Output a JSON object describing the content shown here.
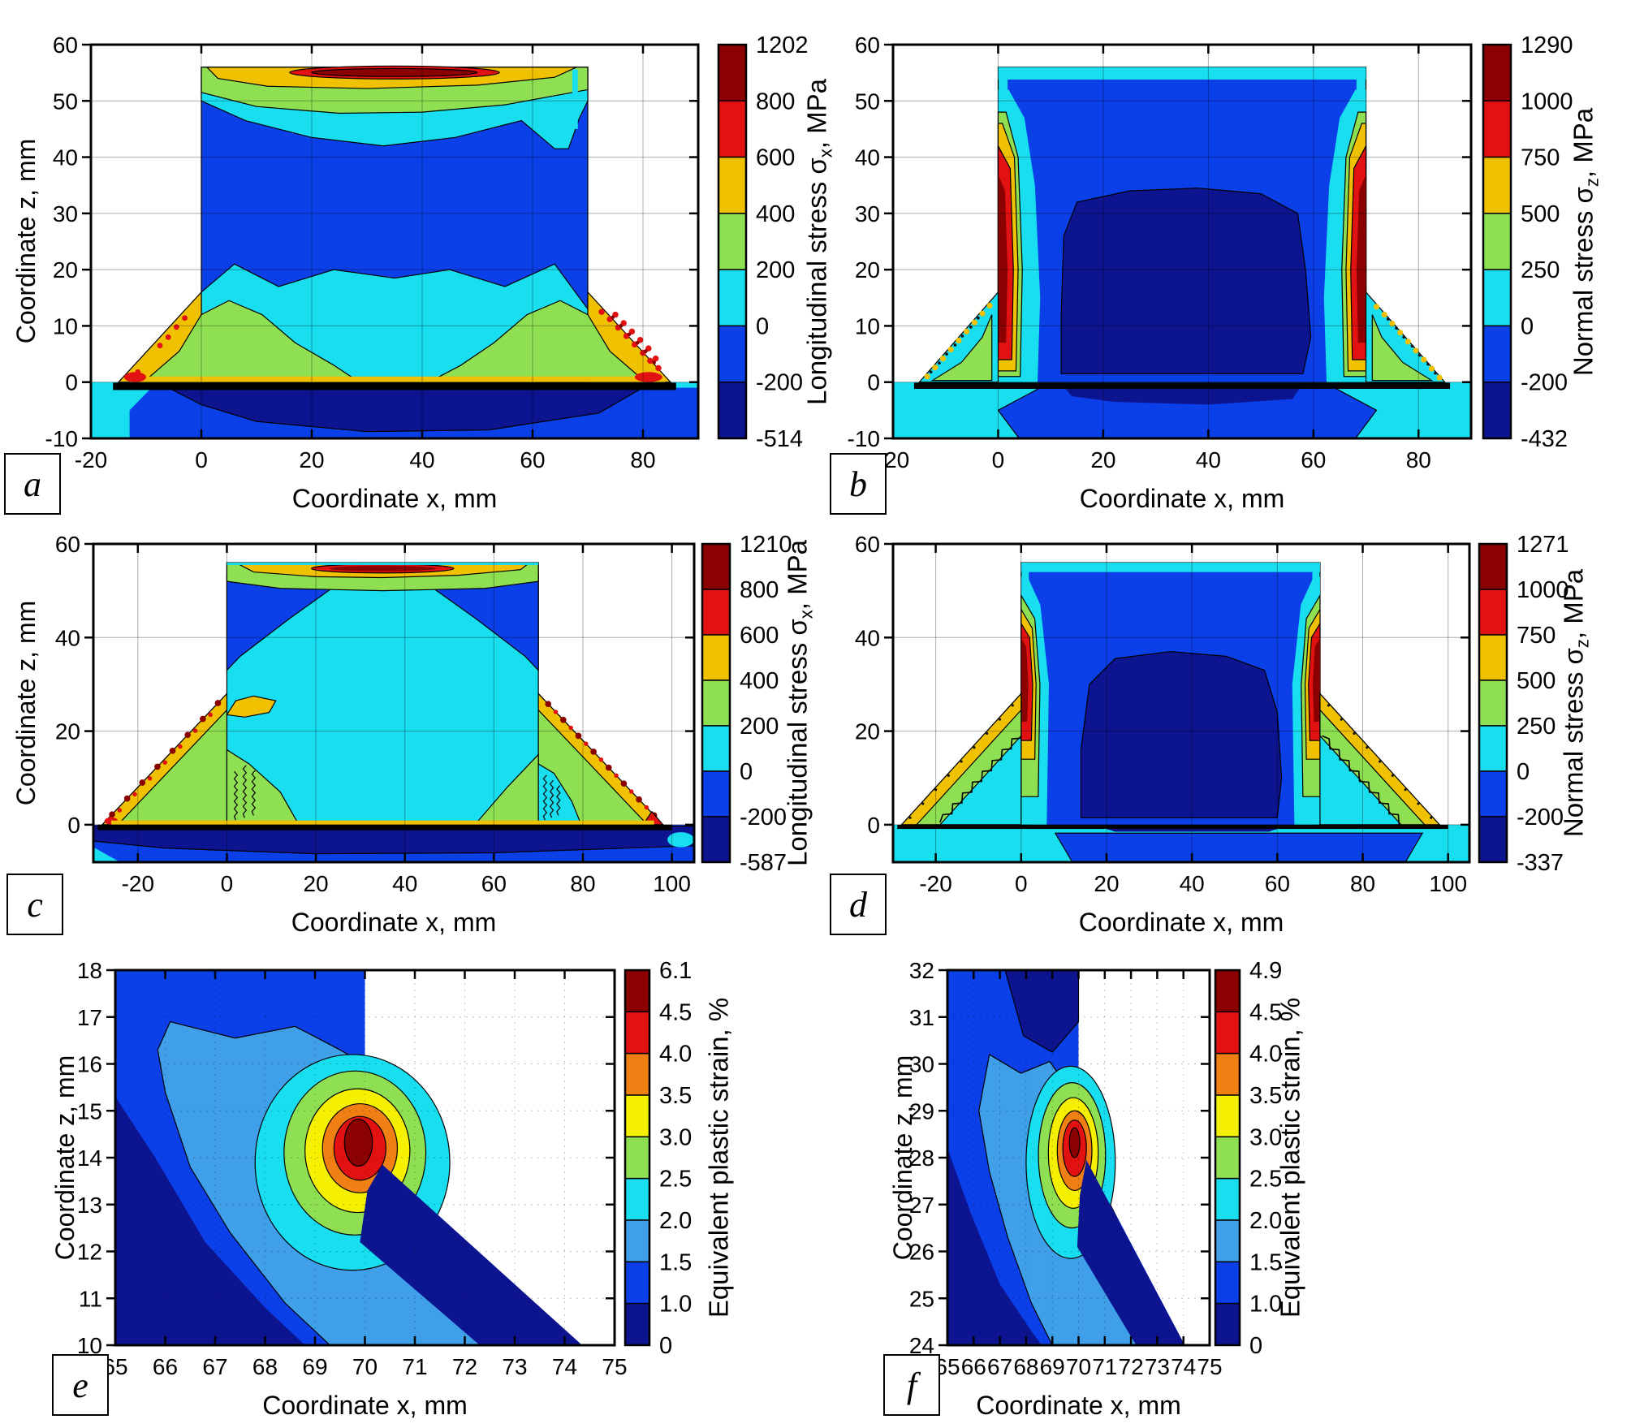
{
  "colors": {
    "maroon": "#8B0000",
    "red": "#E31212",
    "orange": "#F07F14",
    "gold": "#EFC100",
    "yellow": "#F5F000",
    "green": "#8EE052",
    "cyan": "#18DEF0",
    "lightblue": "#3F9FE8",
    "blue": "#0B3FE8",
    "navy": "#0D1490",
    "grid": "rgba(0,0,0,0.32)",
    "axis": "#000000"
  },
  "panels": {
    "a": {
      "letter": "a",
      "xlabel": "Coordinate x, mm",
      "ylabel": "Coordinate z, mm",
      "x_ticks": [
        -20,
        0,
        20,
        40,
        60,
        80
      ],
      "y_ticks": [
        -10,
        0,
        10,
        20,
        30,
        40,
        50,
        60
      ],
      "cbar": {
        "title_main": "Longitudinal stress σ",
        "title_sub": "x",
        "title_unit": ", MPa",
        "labels": [
          "1202",
          "800",
          "600",
          "400",
          "200",
          "0",
          "-200",
          "-514"
        ],
        "colors": [
          "maroon",
          "red",
          "gold",
          "green",
          "cyan",
          "blue",
          "navy"
        ]
      }
    },
    "b": {
      "letter": "b",
      "xlabel": "Coordinate x, mm",
      "x_ticks": [
        -20,
        0,
        20,
        40,
        60,
        80
      ],
      "y_ticks": [
        -10,
        0,
        10,
        20,
        30,
        40,
        50,
        60
      ],
      "cbar": {
        "title_main": "Normal stress σ",
        "title_sub": "z",
        "title_unit": ", MPa",
        "labels": [
          "1290",
          "1000",
          "750",
          "500",
          "250",
          "0",
          "-200",
          "-432"
        ],
        "colors": [
          "maroon",
          "red",
          "gold",
          "green",
          "cyan",
          "blue",
          "navy"
        ]
      }
    },
    "c": {
      "letter": "c",
      "xlabel": "Coordinate x, mm",
      "ylabel": "Coordinate z, mm",
      "x_ticks": [
        -20,
        0,
        20,
        40,
        60,
        80,
        100
      ],
      "y_ticks": [
        0,
        20,
        40,
        60
      ],
      "cbar": {
        "title_main": "Longitudinal stress σ",
        "title_sub": "x",
        "title_unit": ", MPa",
        "labels": [
          "1210",
          "800",
          "600",
          "400",
          "200",
          "0",
          "-200",
          "-587"
        ],
        "colors": [
          "maroon",
          "red",
          "gold",
          "green",
          "cyan",
          "blue",
          "navy"
        ]
      }
    },
    "d": {
      "letter": "d",
      "xlabel": "Coordinate x, mm",
      "x_ticks": [
        -20,
        0,
        20,
        40,
        60,
        80,
        100
      ],
      "y_ticks": [
        0,
        20,
        40,
        60
      ],
      "cbar": {
        "title_main": "Normal stress σ",
        "title_sub": "z",
        "title_unit": ", MPa",
        "labels": [
          "1271",
          "1000",
          "750",
          "500",
          "250",
          "0",
          "-200",
          "-337"
        ],
        "colors": [
          "maroon",
          "red",
          "gold",
          "green",
          "cyan",
          "blue",
          "navy"
        ]
      }
    },
    "e": {
      "letter": "e",
      "xlabel": "Coordinate x, mm",
      "ylabel": "Coordinate z, mm",
      "x_ticks": [
        65,
        66,
        67,
        68,
        69,
        70,
        71,
        72,
        73,
        74,
        75
      ],
      "y_ticks": [
        10,
        11,
        12,
        13,
        14,
        15,
        16,
        17,
        18
      ],
      "cbar": {
        "title_main": "Equivalent plastic strain, %",
        "title_sub": "",
        "title_unit": "",
        "labels": [
          "6.1",
          "4.5",
          "4.0",
          "3.5",
          "3.0",
          "2.5",
          "2.0",
          "1.5",
          "1.0",
          "0"
        ],
        "colors": [
          "maroon",
          "red",
          "orange",
          "yellow",
          "green",
          "cyan",
          "lightblue",
          "blue",
          "navy"
        ]
      }
    },
    "f": {
      "letter": "f",
      "xlabel": "Coordinate x, mm",
      "ylabel": "Coordinate z, mm",
      "x_ticks": [
        65,
        66,
        67,
        68,
        69,
        70,
        71,
        72,
        73,
        74,
        75
      ],
      "y_ticks": [
        24,
        25,
        26,
        27,
        28,
        29,
        30,
        31,
        32
      ],
      "cbar": {
        "title_main": "Equivalent plastic strain, %",
        "title_sub": "",
        "title_unit": "",
        "labels": [
          "4.9",
          "4.5",
          "4.0",
          "3.5",
          "3.0",
          "2.5",
          "2.0",
          "1.5",
          "1.0",
          "0"
        ],
        "colors": [
          "maroon",
          "red",
          "orange",
          "yellow",
          "green",
          "cyan",
          "lightblue",
          "blue",
          "navy"
        ]
      }
    }
  },
  "chart_data": [
    {
      "panel": "a",
      "type": "contour",
      "quantity": "Longitudinal stress σx",
      "units": "MPa",
      "xlabel": "Coordinate x, mm",
      "ylabel": "Coordinate z, mm",
      "x_range": [
        -20,
        90
      ],
      "y_range": [
        -10,
        60
      ],
      "x_ticks": [
        -20,
        0,
        20,
        40,
        60,
        80
      ],
      "y_ticks": [
        -10,
        0,
        10,
        20,
        30,
        40,
        50,
        60
      ],
      "contour_levels": [
        -514,
        -200,
        0,
        200,
        400,
        600,
        800,
        1202
      ],
      "palette_low_to_high": [
        "navy",
        "blue",
        "cyan",
        "green",
        "gold",
        "red",
        "maroon"
      ],
      "min": -514,
      "max": 1202,
      "grid": true,
      "legend_position": "right-colorbar",
      "features": [
        "T-joint cross-section: vertical plate x≈0–70 mm, z≈0–56 mm standing on base plate z<0",
        "peak tension ≈1202 MPa in a narrow horizontal band at top edge z≈55 mm",
        "weld fillet feet (z≈0–16 mm) at 200–600 MPa (green/gold) with local red spots along fusion lines",
        "base plate below weld line compressed, navy lens down to ≈−514 MPa"
      ]
    },
    {
      "panel": "b",
      "type": "contour",
      "quantity": "Normal stress σz",
      "units": "MPa",
      "xlabel": "Coordinate x, mm",
      "ylabel": "Coordinate z, mm",
      "x_range": [
        -20,
        90
      ],
      "y_range": [
        -10,
        60
      ],
      "x_ticks": [
        -20,
        0,
        20,
        40,
        60,
        80
      ],
      "y_ticks": [
        -10,
        0,
        10,
        20,
        30,
        40,
        50,
        60
      ],
      "contour_levels": [
        -432,
        -200,
        0,
        250,
        500,
        750,
        1000,
        1290
      ],
      "palette_low_to_high": [
        "navy",
        "blue",
        "cyan",
        "green",
        "gold",
        "red",
        "maroon"
      ],
      "min": -432,
      "max": 1290,
      "grid": true,
      "legend_position": "right-colorbar",
      "features": [
        "high tensile σz ≈1000–1290 MPa in vertical bands along both plate edges (x≈0 and x≈70, z≈0–50 mm)",
        "plate interior mildly compressive (navy blob, −200…−432 MPa)",
        "fillets show 250–750 MPa speckled field along fusion boundaries"
      ]
    },
    {
      "panel": "c",
      "type": "contour",
      "quantity": "Longitudinal stress σx",
      "units": "MPa",
      "xlabel": "Coordinate x, mm",
      "ylabel": "Coordinate z, mm",
      "x_range": [
        -30,
        105
      ],
      "y_range": [
        -8,
        60
      ],
      "x_ticks": [
        -20,
        0,
        20,
        40,
        60,
        80,
        100
      ],
      "y_ticks": [
        0,
        20,
        40,
        60
      ],
      "contour_levels": [
        -587,
        -200,
        0,
        200,
        400,
        600,
        800,
        1210
      ],
      "palette_low_to_high": [
        "navy",
        "blue",
        "cyan",
        "green",
        "gold",
        "red",
        "maroon"
      ],
      "min": -587,
      "max": 1210,
      "grid": true,
      "legend_position": "right-colorbar",
      "features": [
        "larger weld fillets with slopes reaching z≈28 mm at the plate",
        "top-edge tensile band ≈1210 MPa",
        "gold band with red/maroon speckles along both fillet fusion boundaries",
        "base plate compression to −587 MPa just below the weld line"
      ]
    },
    {
      "panel": "d",
      "type": "contour",
      "quantity": "Normal stress σz",
      "units": "MPa",
      "xlabel": "Coordinate x, mm",
      "ylabel": "Coordinate z, mm",
      "x_range": [
        -30,
        105
      ],
      "y_range": [
        -8,
        60
      ],
      "x_ticks": [
        -20,
        0,
        20,
        40,
        60,
        80,
        100
      ],
      "y_ticks": [
        0,
        20,
        40,
        60
      ],
      "contour_levels": [
        -337,
        -200,
        0,
        250,
        500,
        750,
        1000,
        1271
      ],
      "palette_low_to_high": [
        "navy",
        "blue",
        "cyan",
        "green",
        "gold",
        "red",
        "maroon"
      ],
      "min": -337,
      "max": 1271,
      "grid": true,
      "legend_position": "right-colorbar",
      "features": [
        "tensile σz bands ≈1000–1271 MPa along plate edges above the enlarged fillets (z≈14–50 mm)",
        "navy compressive core inside the plate",
        "gold/green banded fillet slopes with dark zigzag boundary"
      ]
    },
    {
      "panel": "e",
      "type": "contour",
      "quantity": "Equivalent plastic strain",
      "units": "%",
      "xlabel": "Coordinate x, mm",
      "ylabel": "Coordinate z, mm",
      "x_range": [
        65,
        75
      ],
      "y_range": [
        10,
        18
      ],
      "x_ticks": [
        65,
        66,
        67,
        68,
        69,
        70,
        71,
        72,
        73,
        74,
        75
      ],
      "y_ticks": [
        10,
        11,
        12,
        13,
        14,
        15,
        16,
        17,
        18
      ],
      "contour_levels": [
        0,
        1.0,
        1.5,
        2.0,
        2.5,
        3.0,
        3.5,
        4.0,
        4.5,
        6.1
      ],
      "palette_low_to_high": [
        "navy",
        "blue",
        "lightblue",
        "cyan",
        "green",
        "yellow",
        "orange",
        "red",
        "maroon"
      ],
      "min": 0,
      "max": 6.1,
      "peak_location_mm": [
        69.9,
        14.2
      ],
      "grid": true,
      "legend_position": "right-colorbar",
      "features": [
        "concentric strain concentration at the weld toe centered near x≈69.9 mm, z≈14.2 mm",
        "maximum ≈6.1 % (maroon core)",
        "white area is outside the material: free surface runs down x≈70 mm then slopes to (74.4, 10)"
      ]
    },
    {
      "panel": "f",
      "type": "contour",
      "quantity": "Equivalent plastic strain",
      "units": "%",
      "xlabel": "Coordinate x, mm",
      "ylabel": "Coordinate z, mm",
      "x_range": [
        65,
        75
      ],
      "y_range": [
        24,
        32
      ],
      "x_ticks": [
        65,
        66,
        67,
        68,
        69,
        70,
        71,
        72,
        73,
        74,
        75
      ],
      "y_ticks": [
        24,
        25,
        26,
        27,
        28,
        29,
        30,
        31,
        32
      ],
      "contour_levels": [
        0,
        1.0,
        1.5,
        2.0,
        2.5,
        3.0,
        3.5,
        4.0,
        4.5,
        4.9
      ],
      "palette_low_to_high": [
        "navy",
        "blue",
        "lightblue",
        "cyan",
        "green",
        "yellow",
        "orange",
        "red",
        "maroon"
      ],
      "min": 0,
      "max": 4.9,
      "peak_location_mm": [
        69.85,
        28.2
      ],
      "grid": true,
      "legend_position": "right-colorbar",
      "features": [
        "concentric strain concentration at the weld toe centered near x≈69.9 mm, z≈28.2 mm",
        "maximum ≈4.9 % (red/maroon core)",
        "white area is outside the material: free surface runs down x≈70 mm then slopes to (74, 24)"
      ]
    }
  ]
}
